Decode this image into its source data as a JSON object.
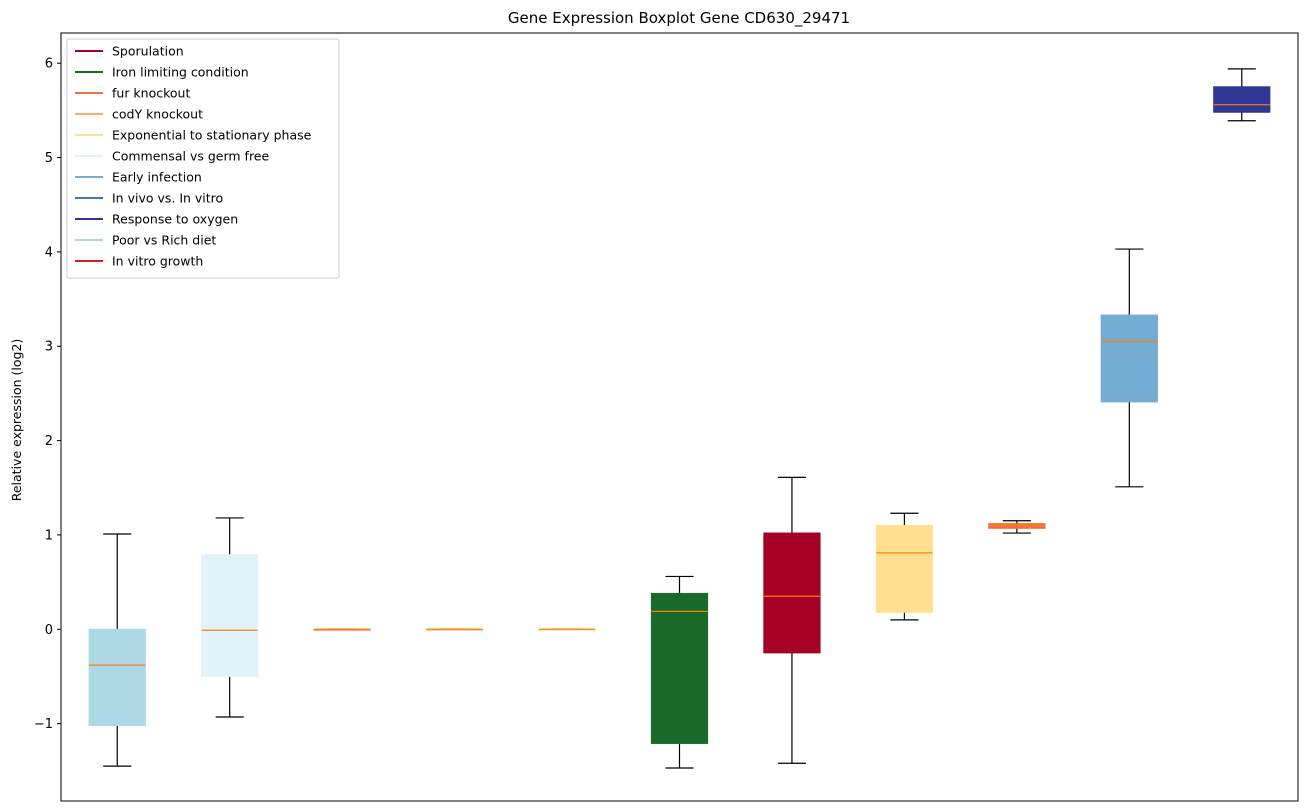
{
  "chart_data": {
    "type": "boxplot",
    "title": "Gene Expression Boxplot Gene CD630_29471",
    "xlabel": "",
    "ylabel": "Relative expression (log2)",
    "ylim": [
      -1.82,
      6.32
    ],
    "yticks": [
      -1,
      0,
      1,
      2,
      3,
      4,
      5,
      6
    ],
    "yticklabels": [
      "−1",
      "0",
      "1",
      "2",
      "3",
      "4",
      "5",
      "6"
    ],
    "grid": false,
    "legend_position": "top-left",
    "median_color": "#ff7f0e",
    "whisker_color": "#000000",
    "legend": [
      {
        "label": "Sporulation",
        "color": "#a50026"
      },
      {
        "label": "Iron limiting condition",
        "color": "#1a6b2a"
      },
      {
        "label": "fur knockout",
        "color": "#f46d43"
      },
      {
        "label": "codY knockout",
        "color": "#fdae61"
      },
      {
        "label": "Exponential to stationary phase",
        "color": "#fee090"
      },
      {
        "label": "Commensal vs germ free",
        "color": "#e0f3f8"
      },
      {
        "label": "Early infection",
        "color": "#74add1"
      },
      {
        "label": "In vivo vs. In vitro",
        "color": "#4575b4"
      },
      {
        "label": "Response to oxygen",
        "color": "#313695"
      },
      {
        "label": "Poor vs Rich diet",
        "color": "#abd9e9"
      },
      {
        "label": "In vitro growth",
        "color": "#e31a1c"
      }
    ],
    "boxes": [
      {
        "position": 1,
        "color": "#add8e6",
        "whislo": -1.45,
        "q1": -1.02,
        "med": -0.38,
        "q3": 0.0,
        "whishi": 1.01
      },
      {
        "position": 2,
        "color": "#e0f3f8",
        "whislo": -0.93,
        "q1": -0.5,
        "med": -0.01,
        "q3": 0.79,
        "whishi": 1.18
      },
      {
        "position": 3,
        "color": "#f46d43",
        "whislo": 0.0,
        "q1": 0.0,
        "med": 0.0,
        "q3": 0.0,
        "whishi": 0.0
      },
      {
        "position": 4,
        "color": "#fdae61",
        "whislo": 0.0,
        "q1": 0.0,
        "med": 0.0,
        "q3": 0.0,
        "whishi": 0.0
      },
      {
        "position": 5,
        "color": "#fee090",
        "whislo": 0.0,
        "q1": 0.0,
        "med": 0.0,
        "q3": 0.0,
        "whishi": 0.0
      },
      {
        "position": 6,
        "color": "#1a6b2a",
        "whislo": -1.47,
        "q1": -1.21,
        "med": 0.19,
        "q3": 0.38,
        "whishi": 0.56
      },
      {
        "position": 7,
        "color": "#a50026",
        "whislo": -1.42,
        "q1": -0.25,
        "med": 0.35,
        "q3": 1.02,
        "whishi": 1.61
      },
      {
        "position": 8,
        "color": "#fee090",
        "whislo": 0.1,
        "q1": 0.18,
        "med": 0.81,
        "q3": 1.1,
        "whishi": 1.23
      },
      {
        "position": 9,
        "color": "#f46d43",
        "whislo": 1.02,
        "q1": 1.07,
        "med": 1.1,
        "q3": 1.12,
        "whishi": 1.15
      },
      {
        "position": 10,
        "color": "#74add1",
        "whislo": 1.51,
        "q1": 2.41,
        "med": 3.05,
        "q3": 3.33,
        "whishi": 4.03
      },
      {
        "position": 11,
        "color": "#313695",
        "whislo": 5.39,
        "q1": 5.48,
        "med": 5.56,
        "q3": 5.75,
        "whishi": 5.94
      }
    ]
  }
}
